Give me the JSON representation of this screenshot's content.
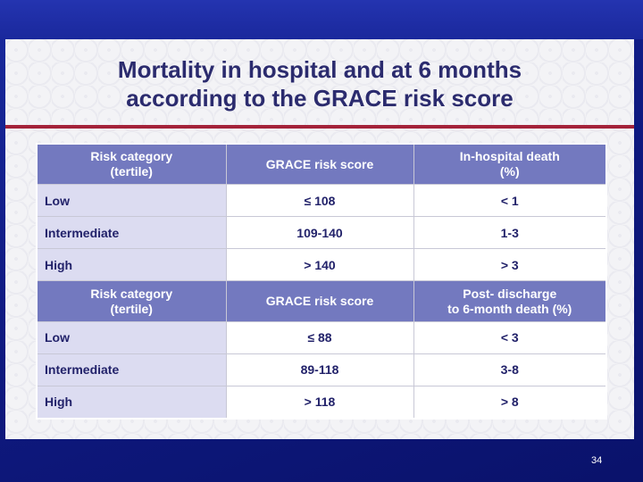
{
  "title": {
    "line1": "Mortality in hospital and at 6 months",
    "line2": "according to the GRACE risk score"
  },
  "table": {
    "section1": {
      "headers": [
        "Risk category (tertile)",
        "GRACE risk score",
        "In-hospital death (%)"
      ],
      "header_lines": [
        [
          "Risk category",
          "(tertile)"
        ],
        [
          "GRACE risk score"
        ],
        [
          "In-hospital death",
          "(%)"
        ]
      ],
      "rows": [
        [
          "Low",
          "≤ 108",
          "< 1"
        ],
        [
          "Intermediate",
          "109-140",
          "1-3"
        ],
        [
          "High",
          "> 140",
          "> 3"
        ]
      ]
    },
    "section2": {
      "headers": [
        "Risk category (tertile)",
        "GRACE risk score",
        "Post- discharge to 6-month death (%)"
      ],
      "header_lines": [
        [
          "Risk category",
          "(tertile)"
        ],
        [
          "GRACE risk score"
        ],
        [
          "Post- discharge",
          "to 6-month death (%)"
        ]
      ],
      "rows": [
        [
          "Low",
          "≤ 88",
          "< 3"
        ],
        [
          "Intermediate",
          "89-118",
          "3-8"
        ],
        [
          "High",
          "> 118",
          "> 8"
        ]
      ]
    }
  },
  "page_number": "34",
  "colors": {
    "header_bg": "#7379bf",
    "category_bg": "#dcdcf1",
    "rule": "#a4233a",
    "text": "#22226a"
  }
}
